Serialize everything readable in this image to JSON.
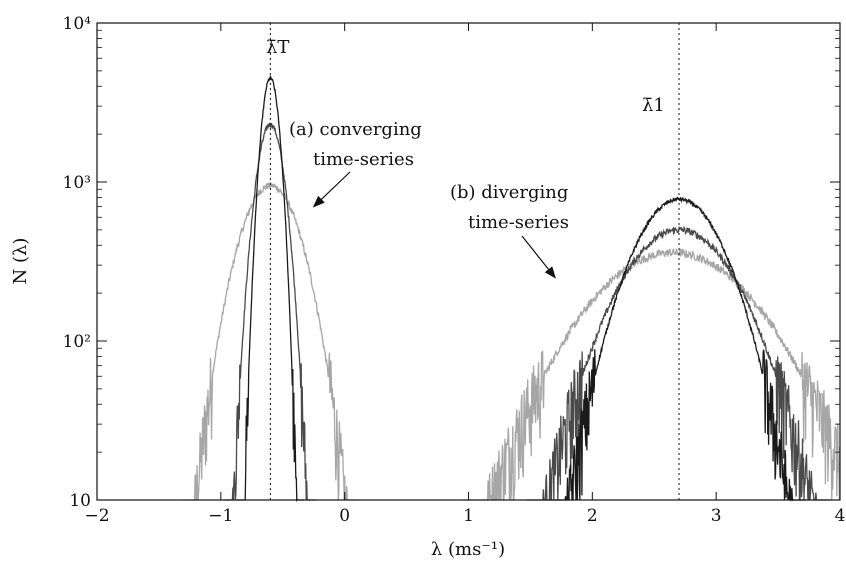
{
  "chart_data": {
    "type": "line",
    "yscale": "log",
    "xlim": [
      -2,
      4
    ],
    "ylim": [
      10,
      10000
    ],
    "xlabel": "λ (ms⁻¹)",
    "ylabel": "N (λ)",
    "x_ticks": [
      -2,
      -1,
      0,
      1,
      2,
      3,
      4
    ],
    "x_tick_labels": [
      "−2",
      "−1",
      "0",
      "1",
      "2",
      "3",
      "4"
    ],
    "y_ticks": [
      10,
      100,
      1000,
      10000
    ],
    "y_tick_labels": [
      "10",
      "10²",
      "10³",
      "10⁴"
    ],
    "grid": false,
    "reference_lines": [
      {
        "label": "λ̄T",
        "x": -0.6,
        "style": "dotted"
      },
      {
        "label": "λ̄1",
        "x": 2.7,
        "style": "dotted"
      }
    ],
    "annotations": [
      {
        "text_lines": [
          "(a) converging",
          "time-series"
        ],
        "arrow_to": [
          -0.25,
          700
        ]
      },
      {
        "text_lines": [
          "(b) diverging",
          "time-series"
        ],
        "arrow_to": [
          1.7,
          250
        ]
      }
    ],
    "series": [
      {
        "group": "converging",
        "color": "#1a1a1a",
        "center": -0.6,
        "peak": 4500,
        "width": 0.06,
        "noise": 0.05
      },
      {
        "group": "converging",
        "color": "#4a4a4a",
        "center": -0.6,
        "peak": 2300,
        "width": 0.09,
        "noise": 0.08
      },
      {
        "group": "converging",
        "color": "#a6a6a6",
        "center": -0.6,
        "peak": 950,
        "width": 0.2,
        "noise": 0.1
      },
      {
        "group": "diverging",
        "color": "#1a1a1a",
        "center": 2.7,
        "peak": 780,
        "width": 0.3,
        "noise": 0.06
      },
      {
        "group": "diverging",
        "color": "#4a4a4a",
        "center": 2.7,
        "peak": 500,
        "width": 0.38,
        "noise": 0.1
      },
      {
        "group": "diverging",
        "color": "#a6a6a6",
        "center": 2.65,
        "peak": 360,
        "width": 0.55,
        "noise": 0.12
      }
    ]
  }
}
